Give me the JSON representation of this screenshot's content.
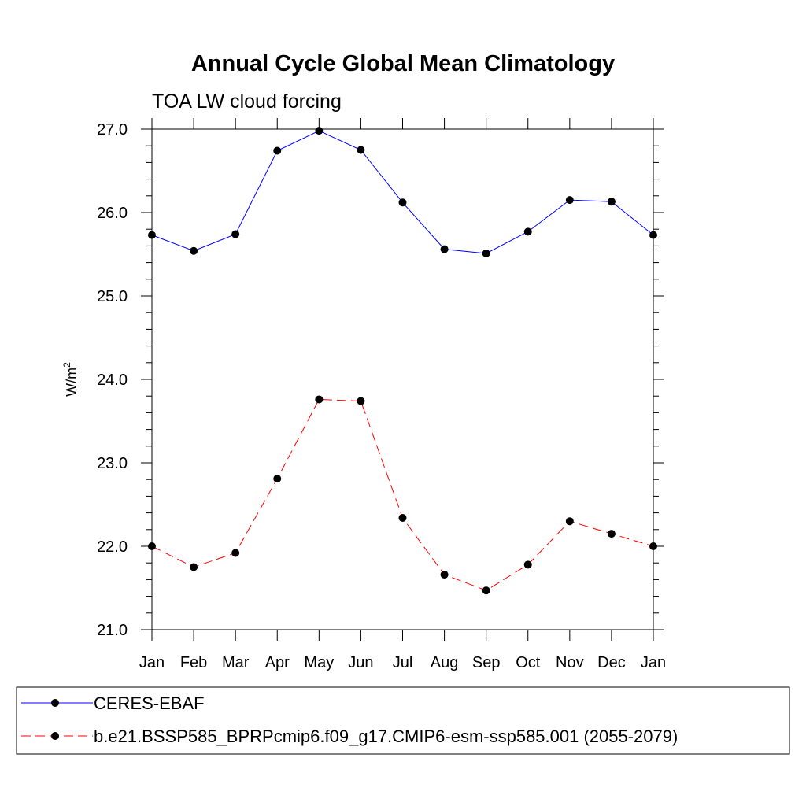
{
  "chart_data": {
    "type": "line",
    "title": "Annual Cycle Global Mean Climatology",
    "subtitle": "TOA LW cloud forcing",
    "xlabel": "",
    "ylabel": "W/m",
    "ylabel_superscript": "2",
    "categories": [
      "Jan",
      "Feb",
      "Mar",
      "Apr",
      "May",
      "Jun",
      "Jul",
      "Aug",
      "Sep",
      "Oct",
      "Nov",
      "Dec",
      "Jan"
    ],
    "ylim": [
      21.0,
      27.0
    ],
    "yticks": [
      "21.0",
      "22.0",
      "23.0",
      "24.0",
      "25.0",
      "26.0",
      "27.0"
    ],
    "ytick_values": [
      21.0,
      22.0,
      23.0,
      24.0,
      25.0,
      26.0,
      27.0
    ],
    "grid": false,
    "legend_position": "bottom",
    "series": [
      {
        "name": "CERES-EBAF",
        "color": "#0000ff",
        "dash": "solid",
        "values": [
          25.73,
          25.54,
          25.74,
          26.74,
          26.98,
          26.75,
          26.12,
          25.56,
          25.51,
          25.77,
          26.15,
          26.13,
          25.73
        ]
      },
      {
        "name": "b.e21.BSSP585_BPRPcmip6.f09_g17.CMIP6-esm-ssp585.001 (2055-2079)",
        "color": "#ff0000",
        "dash": "dashed",
        "values": [
          22.0,
          21.75,
          21.92,
          22.81,
          23.76,
          23.74,
          22.34,
          21.66,
          21.47,
          21.78,
          22.3,
          22.15,
          22.0
        ]
      }
    ]
  }
}
